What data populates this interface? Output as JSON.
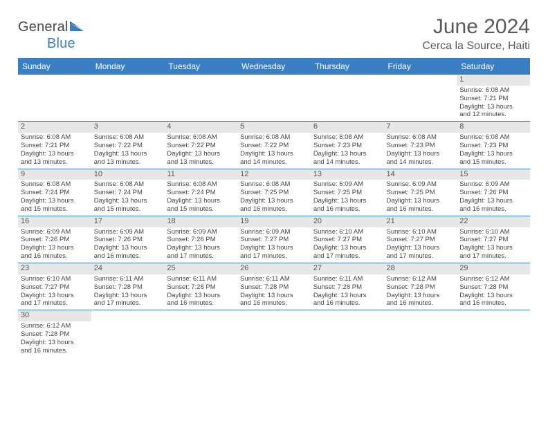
{
  "brand": {
    "name_a": "General",
    "name_b": "Blue"
  },
  "title": "June 2024",
  "location": "Cerca la Source, Haiti",
  "colors": {
    "header_bg": "#3a7fc4",
    "header_text": "#ffffff",
    "daynum_bg": "#e7e7e7",
    "border": "#3a7fc4",
    "text": "#444444",
    "title_text": "#5a5a5a"
  },
  "typography": {
    "title_fontsize": 30,
    "location_fontsize": 16,
    "header_fontsize": 12,
    "cell_fontsize": 9.5,
    "daynum_fontsize": 11
  },
  "day_names": [
    "Sunday",
    "Monday",
    "Tuesday",
    "Wednesday",
    "Thursday",
    "Friday",
    "Saturday"
  ],
  "weeks": [
    [
      {
        "day": "",
        "sunrise": "",
        "sunset": "",
        "dayl1": "",
        "dayl2": ""
      },
      {
        "day": "",
        "sunrise": "",
        "sunset": "",
        "dayl1": "",
        "dayl2": ""
      },
      {
        "day": "",
        "sunrise": "",
        "sunset": "",
        "dayl1": "",
        "dayl2": ""
      },
      {
        "day": "",
        "sunrise": "",
        "sunset": "",
        "dayl1": "",
        "dayl2": ""
      },
      {
        "day": "",
        "sunrise": "",
        "sunset": "",
        "dayl1": "",
        "dayl2": ""
      },
      {
        "day": "",
        "sunrise": "",
        "sunset": "",
        "dayl1": "",
        "dayl2": ""
      },
      {
        "day": "1",
        "sunrise": "Sunrise: 6:08 AM",
        "sunset": "Sunset: 7:21 PM",
        "dayl1": "Daylight: 13 hours",
        "dayl2": "and 12 minutes."
      }
    ],
    [
      {
        "day": "2",
        "sunrise": "Sunrise: 6:08 AM",
        "sunset": "Sunset: 7:21 PM",
        "dayl1": "Daylight: 13 hours",
        "dayl2": "and 13 minutes."
      },
      {
        "day": "3",
        "sunrise": "Sunrise: 6:08 AM",
        "sunset": "Sunset: 7:22 PM",
        "dayl1": "Daylight: 13 hours",
        "dayl2": "and 13 minutes."
      },
      {
        "day": "4",
        "sunrise": "Sunrise: 6:08 AM",
        "sunset": "Sunset: 7:22 PM",
        "dayl1": "Daylight: 13 hours",
        "dayl2": "and 13 minutes."
      },
      {
        "day": "5",
        "sunrise": "Sunrise: 6:08 AM",
        "sunset": "Sunset: 7:22 PM",
        "dayl1": "Daylight: 13 hours",
        "dayl2": "and 14 minutes."
      },
      {
        "day": "6",
        "sunrise": "Sunrise: 6:08 AM",
        "sunset": "Sunset: 7:23 PM",
        "dayl1": "Daylight: 13 hours",
        "dayl2": "and 14 minutes."
      },
      {
        "day": "7",
        "sunrise": "Sunrise: 6:08 AM",
        "sunset": "Sunset: 7:23 PM",
        "dayl1": "Daylight: 13 hours",
        "dayl2": "and 14 minutes."
      },
      {
        "day": "8",
        "sunrise": "Sunrise: 6:08 AM",
        "sunset": "Sunset: 7:23 PM",
        "dayl1": "Daylight: 13 hours",
        "dayl2": "and 15 minutes."
      }
    ],
    [
      {
        "day": "9",
        "sunrise": "Sunrise: 6:08 AM",
        "sunset": "Sunset: 7:24 PM",
        "dayl1": "Daylight: 13 hours",
        "dayl2": "and 15 minutes."
      },
      {
        "day": "10",
        "sunrise": "Sunrise: 6:08 AM",
        "sunset": "Sunset: 7:24 PM",
        "dayl1": "Daylight: 13 hours",
        "dayl2": "and 15 minutes."
      },
      {
        "day": "11",
        "sunrise": "Sunrise: 6:08 AM",
        "sunset": "Sunset: 7:24 PM",
        "dayl1": "Daylight: 13 hours",
        "dayl2": "and 15 minutes."
      },
      {
        "day": "12",
        "sunrise": "Sunrise: 6:08 AM",
        "sunset": "Sunset: 7:25 PM",
        "dayl1": "Daylight: 13 hours",
        "dayl2": "and 16 minutes."
      },
      {
        "day": "13",
        "sunrise": "Sunrise: 6:09 AM",
        "sunset": "Sunset: 7:25 PM",
        "dayl1": "Daylight: 13 hours",
        "dayl2": "and 16 minutes."
      },
      {
        "day": "14",
        "sunrise": "Sunrise: 6:09 AM",
        "sunset": "Sunset: 7:25 PM",
        "dayl1": "Daylight: 13 hours",
        "dayl2": "and 16 minutes."
      },
      {
        "day": "15",
        "sunrise": "Sunrise: 6:09 AM",
        "sunset": "Sunset: 7:26 PM",
        "dayl1": "Daylight: 13 hours",
        "dayl2": "and 16 minutes."
      }
    ],
    [
      {
        "day": "16",
        "sunrise": "Sunrise: 6:09 AM",
        "sunset": "Sunset: 7:26 PM",
        "dayl1": "Daylight: 13 hours",
        "dayl2": "and 16 minutes."
      },
      {
        "day": "17",
        "sunrise": "Sunrise: 6:09 AM",
        "sunset": "Sunset: 7:26 PM",
        "dayl1": "Daylight: 13 hours",
        "dayl2": "and 16 minutes."
      },
      {
        "day": "18",
        "sunrise": "Sunrise: 6:09 AM",
        "sunset": "Sunset: 7:26 PM",
        "dayl1": "Daylight: 13 hours",
        "dayl2": "and 17 minutes."
      },
      {
        "day": "19",
        "sunrise": "Sunrise: 6:09 AM",
        "sunset": "Sunset: 7:27 PM",
        "dayl1": "Daylight: 13 hours",
        "dayl2": "and 17 minutes."
      },
      {
        "day": "20",
        "sunrise": "Sunrise: 6:10 AM",
        "sunset": "Sunset: 7:27 PM",
        "dayl1": "Daylight: 13 hours",
        "dayl2": "and 17 minutes."
      },
      {
        "day": "21",
        "sunrise": "Sunrise: 6:10 AM",
        "sunset": "Sunset: 7:27 PM",
        "dayl1": "Daylight: 13 hours",
        "dayl2": "and 17 minutes."
      },
      {
        "day": "22",
        "sunrise": "Sunrise: 6:10 AM",
        "sunset": "Sunset: 7:27 PM",
        "dayl1": "Daylight: 13 hours",
        "dayl2": "and 17 minutes."
      }
    ],
    [
      {
        "day": "23",
        "sunrise": "Sunrise: 6:10 AM",
        "sunset": "Sunset: 7:27 PM",
        "dayl1": "Daylight: 13 hours",
        "dayl2": "and 17 minutes."
      },
      {
        "day": "24",
        "sunrise": "Sunrise: 6:11 AM",
        "sunset": "Sunset: 7:28 PM",
        "dayl1": "Daylight: 13 hours",
        "dayl2": "and 17 minutes."
      },
      {
        "day": "25",
        "sunrise": "Sunrise: 6:11 AM",
        "sunset": "Sunset: 7:28 PM",
        "dayl1": "Daylight: 13 hours",
        "dayl2": "and 16 minutes."
      },
      {
        "day": "26",
        "sunrise": "Sunrise: 6:11 AM",
        "sunset": "Sunset: 7:28 PM",
        "dayl1": "Daylight: 13 hours",
        "dayl2": "and 16 minutes."
      },
      {
        "day": "27",
        "sunrise": "Sunrise: 6:11 AM",
        "sunset": "Sunset: 7:28 PM",
        "dayl1": "Daylight: 13 hours",
        "dayl2": "and 16 minutes."
      },
      {
        "day": "28",
        "sunrise": "Sunrise: 6:12 AM",
        "sunset": "Sunset: 7:28 PM",
        "dayl1": "Daylight: 13 hours",
        "dayl2": "and 16 minutes."
      },
      {
        "day": "29",
        "sunrise": "Sunrise: 6:12 AM",
        "sunset": "Sunset: 7:28 PM",
        "dayl1": "Daylight: 13 hours",
        "dayl2": "and 16 minutes."
      }
    ],
    [
      {
        "day": "30",
        "sunrise": "Sunrise: 6:12 AM",
        "sunset": "Sunset: 7:28 PM",
        "dayl1": "Daylight: 13 hours",
        "dayl2": "and 16 minutes."
      },
      {
        "day": "",
        "sunrise": "",
        "sunset": "",
        "dayl1": "",
        "dayl2": ""
      },
      {
        "day": "",
        "sunrise": "",
        "sunset": "",
        "dayl1": "",
        "dayl2": ""
      },
      {
        "day": "",
        "sunrise": "",
        "sunset": "",
        "dayl1": "",
        "dayl2": ""
      },
      {
        "day": "",
        "sunrise": "",
        "sunset": "",
        "dayl1": "",
        "dayl2": ""
      },
      {
        "day": "",
        "sunrise": "",
        "sunset": "",
        "dayl1": "",
        "dayl2": ""
      },
      {
        "day": "",
        "sunrise": "",
        "sunset": "",
        "dayl1": "",
        "dayl2": ""
      }
    ]
  ]
}
